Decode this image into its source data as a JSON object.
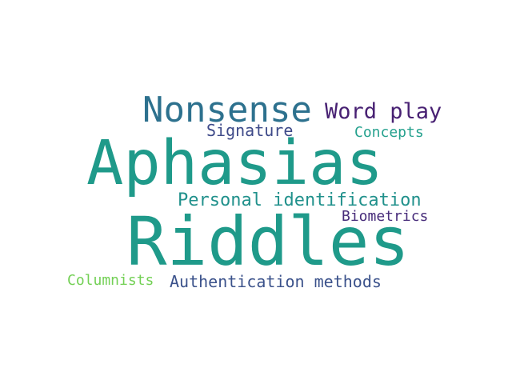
{
  "words": [
    {
      "key": "aphasias",
      "text": "Aphasias",
      "color": "#1f9a8a"
    },
    {
      "key": "riddles",
      "text": "Riddles",
      "color": "#1f9a8a"
    },
    {
      "key": "nonsense",
      "text": "Nonsense",
      "color": "#2d718e"
    },
    {
      "key": "wordplay",
      "text": "Word play",
      "color": "#482173"
    },
    {
      "key": "signature",
      "text": "Signature",
      "color": "#3e4a89"
    },
    {
      "key": "concepts",
      "text": "Concepts",
      "color": "#25a18e"
    },
    {
      "key": "personal",
      "text": "Personal identification",
      "color": "#21918c"
    },
    {
      "key": "biometrics",
      "text": "Biometrics",
      "color": "#472c7a"
    },
    {
      "key": "columnists",
      "text": "Columnists",
      "color": "#73d055"
    },
    {
      "key": "auth",
      "text": "Authentication methods",
      "color": "#3b528b"
    }
  ]
}
